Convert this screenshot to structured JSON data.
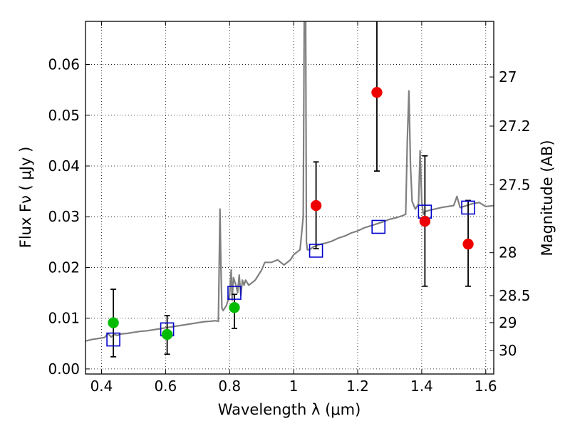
{
  "chart_data": {
    "type": "scatter",
    "title": "",
    "xlabel": "Wavelength  λ (μm)",
    "ylabel": "Flux  Fν  ( μJy )",
    "y2label": "Magnitude (AB)",
    "xlim": [
      0.35,
      1.625
    ],
    "ylim": [
      -0.001,
      0.0685
    ],
    "grid": true,
    "xticks": [
      {
        "value": 0.4,
        "label": "0.4"
      },
      {
        "value": 0.6,
        "label": "0.6"
      },
      {
        "value": 0.8,
        "label": "0.8"
      },
      {
        "value": 1.0,
        "label": "1"
      },
      {
        "value": 1.2,
        "label": "1.2"
      },
      {
        "value": 1.4,
        "label": "1.4"
      },
      {
        "value": 1.6,
        "label": "1.6"
      }
    ],
    "yticks": [
      {
        "value": 0.0,
        "label": "0.00"
      },
      {
        "value": 0.01,
        "label": "0.01"
      },
      {
        "value": 0.02,
        "label": "0.02"
      },
      {
        "value": 0.03,
        "label": "0.03"
      },
      {
        "value": 0.04,
        "label": "0.04"
      },
      {
        "value": 0.05,
        "label": "0.05"
      },
      {
        "value": 0.06,
        "label": "0.06"
      }
    ],
    "y2ticks": [
      {
        "label": "27",
        "flux": 0.05754
      },
      {
        "label": "27.2",
        "flux": 0.04786
      },
      {
        "label": "27.5",
        "flux": 0.03631
      },
      {
        "label": "28",
        "flux": 0.02291
      },
      {
        "label": "28.5",
        "flux": 0.01445
      },
      {
        "label": "29",
        "flux": 0.00912
      },
      {
        "label": "30",
        "flux": 0.00363
      }
    ],
    "series": [
      {
        "kind": "line",
        "color": "#808080",
        "x": [
          0.35,
          0.37,
          0.39,
          0.41,
          0.42,
          0.43,
          0.44,
          0.45,
          0.46,
          0.48,
          0.5,
          0.52,
          0.54,
          0.56,
          0.58,
          0.6,
          0.62,
          0.64,
          0.66,
          0.68,
          0.7,
          0.72,
          0.74,
          0.755,
          0.765,
          0.77,
          0.773,
          0.776,
          0.78,
          0.79,
          0.8,
          0.805,
          0.808,
          0.812,
          0.82,
          0.825,
          0.83,
          0.835,
          0.84,
          0.845,
          0.85,
          0.86,
          0.87,
          0.88,
          0.89,
          0.9,
          0.91,
          0.93,
          0.95,
          0.97,
          0.99,
          1.0,
          1.01,
          1.02,
          1.03,
          1.034,
          1.037,
          1.04,
          1.043,
          1.05,
          1.06,
          1.08,
          1.1,
          1.12,
          1.14,
          1.16,
          1.18,
          1.2,
          1.22,
          1.24,
          1.26,
          1.28,
          1.3,
          1.32,
          1.34,
          1.35,
          1.355,
          1.36,
          1.365,
          1.37,
          1.38,
          1.39,
          1.395,
          1.4,
          1.405,
          1.41,
          1.42,
          1.44,
          1.46,
          1.48,
          1.5,
          1.51,
          1.52,
          1.54,
          1.56,
          1.58,
          1.6,
          1.625
        ],
        "y": [
          0.0055,
          0.0058,
          0.006,
          0.0062,
          0.007,
          0.0063,
          0.0068,
          0.0066,
          0.0069,
          0.007,
          0.0072,
          0.0074,
          0.0075,
          0.0077,
          0.0079,
          0.0081,
          0.0083,
          0.0085,
          0.0087,
          0.0089,
          0.0091,
          0.0093,
          0.0094,
          0.0095,
          0.0094,
          0.0315,
          0.02,
          0.012,
          0.0115,
          0.0125,
          0.0145,
          0.0195,
          0.0135,
          0.018,
          0.0165,
          0.015,
          0.0185,
          0.0145,
          0.0175,
          0.0165,
          0.0175,
          0.0165,
          0.017,
          0.0175,
          0.0185,
          0.0195,
          0.021,
          0.021,
          0.0215,
          0.0205,
          0.0215,
          0.0225,
          0.023,
          0.0235,
          0.03,
          0.08,
          0.08,
          0.025,
          0.0235,
          0.0235,
          0.024,
          0.0245,
          0.0248,
          0.0252,
          0.0258,
          0.0262,
          0.0268,
          0.0272,
          0.0278,
          0.0282,
          0.0286,
          0.029,
          0.0295,
          0.0298,
          0.0302,
          0.0305,
          0.045,
          0.0548,
          0.04,
          0.033,
          0.0315,
          0.0325,
          0.043,
          0.033,
          0.0305,
          0.031,
          0.0312,
          0.0315,
          0.0318,
          0.032,
          0.0322,
          0.034,
          0.0318,
          0.0322,
          0.0326,
          0.0328,
          0.032,
          0.0322
        ]
      },
      {
        "kind": "squares",
        "color": "#0000cc",
        "x": [
          0.437,
          0.605,
          0.815,
          1.07,
          1.265,
          1.41,
          1.545
        ],
        "y": [
          0.0058,
          0.0078,
          0.015,
          0.0233,
          0.028,
          0.031,
          0.0318
        ]
      },
      {
        "kind": "points",
        "color": "#00bb00",
        "x": [
          0.437,
          0.605,
          0.815
        ],
        "y": [
          0.0091,
          0.0068,
          0.0121
        ],
        "yerr_low": [
          0.0024,
          0.0029,
          0.008
        ],
        "yerr_high": [
          0.0157,
          0.0105,
          0.0147
        ]
      },
      {
        "kind": "points",
        "color": "#ee0000",
        "x": [
          1.07,
          1.26,
          1.41,
          1.545
        ],
        "y": [
          0.0322,
          0.0545,
          0.0291,
          0.0246
        ],
        "yerr_low": [
          0.0237,
          0.039,
          0.0163,
          0.0163
        ],
        "yerr_high": [
          0.0408,
          0.07,
          0.042,
          0.0332
        ]
      }
    ]
  }
}
